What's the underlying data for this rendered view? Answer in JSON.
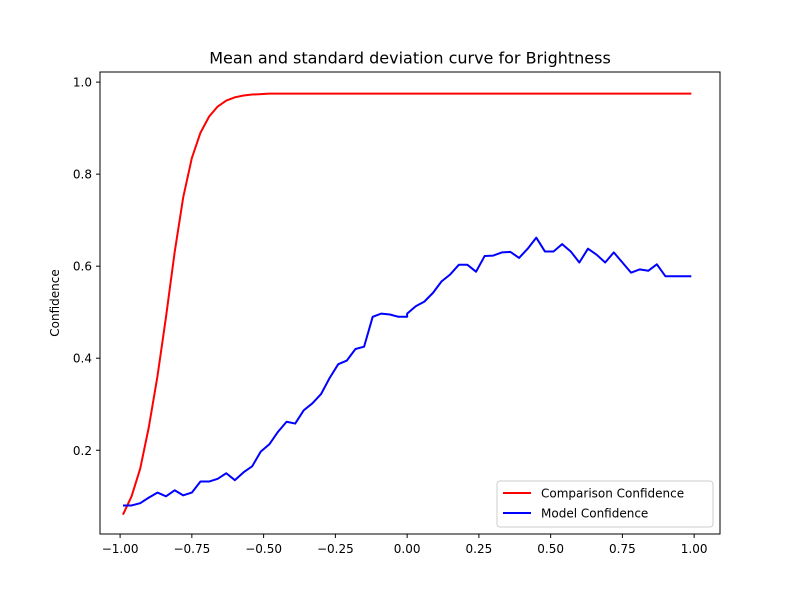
{
  "chart_data": {
    "type": "line",
    "title": "Mean and standard deviation curve for Brightness",
    "xlabel": "",
    "ylabel": "Confidence",
    "xlim": [
      -1.07,
      1.09
    ],
    "ylim": [
      0.018,
      1.022
    ],
    "xticks": [
      -1.0,
      -0.75,
      -0.5,
      -0.25,
      0.0,
      0.25,
      0.5,
      0.75,
      1.0
    ],
    "xtick_labels": [
      "−1.00",
      "−0.75",
      "−0.50",
      "−0.25",
      "0.00",
      "0.25",
      "0.50",
      "0.75",
      "1.00"
    ],
    "yticks": [
      0.2,
      0.4,
      0.6,
      0.8,
      1.0
    ],
    "ytick_labels": [
      "0.2",
      "0.4",
      "0.6",
      "0.8",
      "1.0"
    ],
    "legend": {
      "location": "lower-right"
    },
    "series": [
      {
        "name": "Comparison Confidence",
        "color": "#ff0000",
        "x": [
          -0.99,
          -0.96,
          -0.93,
          -0.9,
          -0.87,
          -0.84,
          -0.81,
          -0.78,
          -0.75,
          -0.72,
          -0.69,
          -0.66,
          -0.63,
          -0.6,
          -0.57,
          -0.54,
          -0.51,
          -0.48,
          -0.45,
          -0.4,
          -0.3,
          -0.2,
          -0.1,
          0.0,
          0.1,
          0.2,
          0.3,
          0.4,
          0.5,
          0.6,
          0.7,
          0.8,
          0.9,
          0.99
        ],
        "y": [
          0.06,
          0.1,
          0.16,
          0.25,
          0.36,
          0.49,
          0.63,
          0.75,
          0.835,
          0.89,
          0.925,
          0.947,
          0.96,
          0.967,
          0.971,
          0.973,
          0.974,
          0.975,
          0.975,
          0.975,
          0.975,
          0.975,
          0.975,
          0.975,
          0.975,
          0.975,
          0.975,
          0.975,
          0.975,
          0.975,
          0.975,
          0.975,
          0.975,
          0.975
        ]
      },
      {
        "name": "Model Confidence",
        "color": "#0000ff",
        "x": [
          -0.99,
          -0.96,
          -0.93,
          -0.9,
          -0.87,
          -0.84,
          -0.81,
          -0.78,
          -0.75,
          -0.72,
          -0.69,
          -0.66,
          -0.63,
          -0.6,
          -0.57,
          -0.54,
          -0.51,
          -0.48,
          -0.45,
          -0.42,
          -0.39,
          -0.36,
          -0.33,
          -0.3,
          -0.27,
          -0.24,
          -0.21,
          -0.18,
          -0.15,
          -0.12,
          -0.09,
          -0.06,
          -0.03,
          0.0,
          0.0,
          0.03,
          0.06,
          0.09,
          0.12,
          0.15,
          0.18,
          0.21,
          0.24,
          0.27,
          0.3,
          0.33,
          0.36,
          0.39,
          0.42,
          0.45,
          0.48,
          0.51,
          0.54,
          0.57,
          0.6,
          0.63,
          0.66,
          0.69,
          0.72,
          0.75,
          0.78,
          0.81,
          0.84,
          0.87,
          0.9,
          0.93,
          0.96,
          0.99
        ],
        "y": [
          0.08,
          0.08,
          0.085,
          0.097,
          0.108,
          0.1,
          0.113,
          0.102,
          0.108,
          0.132,
          0.132,
          0.138,
          0.15,
          0.135,
          0.152,
          0.165,
          0.197,
          0.213,
          0.24,
          0.262,
          0.258,
          0.287,
          0.302,
          0.322,
          0.357,
          0.387,
          0.395,
          0.42,
          0.425,
          0.49,
          0.497,
          0.495,
          0.49,
          0.49,
          0.497,
          0.513,
          0.523,
          0.542,
          0.567,
          0.582,
          0.603,
          0.603,
          0.588,
          0.622,
          0.623,
          0.63,
          0.631,
          0.618,
          0.638,
          0.662,
          0.632,
          0.632,
          0.648,
          0.632,
          0.608,
          0.638,
          0.625,
          0.608,
          0.63,
          0.608,
          0.586,
          0.593,
          0.59,
          0.604,
          0.578,
          0.578,
          0.578,
          0.578
        ]
      }
    ]
  }
}
